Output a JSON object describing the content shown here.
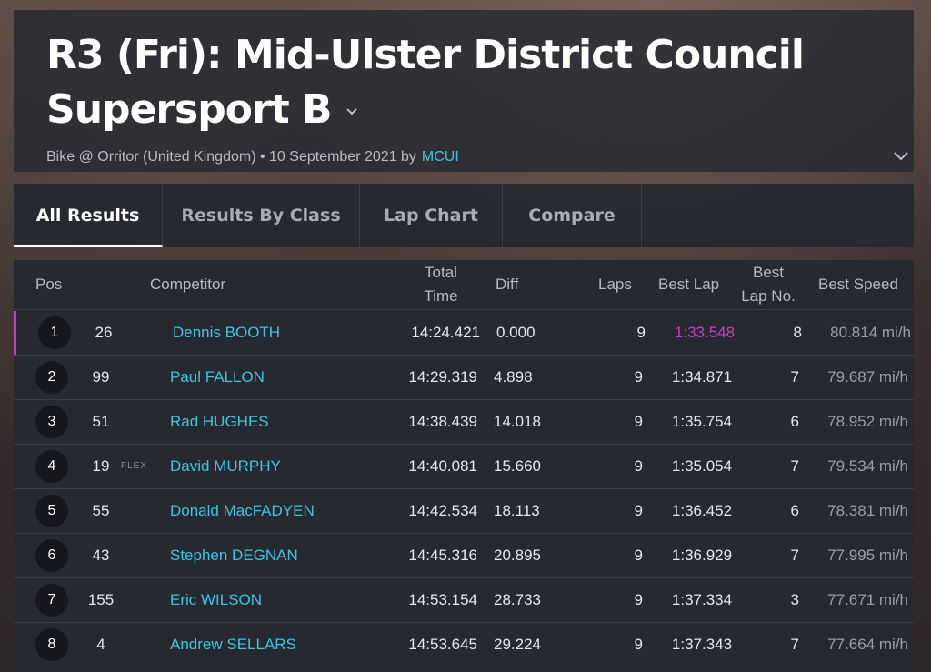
{
  "header": {
    "title": "R3 (Fri): Mid-Ulster District Council Supersport B",
    "subtitle": "Bike @ Orritor (United Kingdom) • 10 September 2021 by",
    "author": "MCUI"
  },
  "tabs": [
    {
      "label": "All Results",
      "active": true
    },
    {
      "label": "Results By Class",
      "active": false
    },
    {
      "label": "Lap Chart",
      "active": false
    },
    {
      "label": "Compare",
      "active": false
    }
  ],
  "table": {
    "columns": {
      "pos": "Pos",
      "competitor": "Competitor",
      "total_time_1": "Total",
      "total_time_2": "Time",
      "diff": "Diff",
      "laps": "Laps",
      "best_lap": "Best Lap",
      "best_lap_no_1": "Best",
      "best_lap_no_2": "Lap No.",
      "best_speed": "Best Speed"
    },
    "rows": [
      {
        "pos": "1",
        "num": "26",
        "tag": "",
        "name": "Dennis BOOTH",
        "total": "14:24.421",
        "diff": "0.000",
        "laps": "9",
        "best": "1:33.548",
        "bestno": "8",
        "speed": "80.814 mi/h"
      },
      {
        "pos": "2",
        "num": "99",
        "tag": "",
        "name": "Paul FALLON",
        "total": "14:29.319",
        "diff": "4.898",
        "laps": "9",
        "best": "1:34.871",
        "bestno": "7",
        "speed": "79.687 mi/h"
      },
      {
        "pos": "3",
        "num": "51",
        "tag": "",
        "name": "Rad HUGHES",
        "total": "14:38.439",
        "diff": "14.018",
        "laps": "9",
        "best": "1:35.754",
        "bestno": "6",
        "speed": "78.952 mi/h"
      },
      {
        "pos": "4",
        "num": "19",
        "tag": "FLEX",
        "name": "David MURPHY",
        "total": "14:40.081",
        "diff": "15.660",
        "laps": "9",
        "best": "1:35.054",
        "bestno": "7",
        "speed": "79.534 mi/h"
      },
      {
        "pos": "5",
        "num": "55",
        "tag": "",
        "name": "Donald MacFADYEN",
        "total": "14:42.534",
        "diff": "18.113",
        "laps": "9",
        "best": "1:36.452",
        "bestno": "6",
        "speed": "78.381 mi/h"
      },
      {
        "pos": "6",
        "num": "43",
        "tag": "",
        "name": "Stephen DEGNAN",
        "total": "14:45.316",
        "diff": "20.895",
        "laps": "9",
        "best": "1:36.929",
        "bestno": "7",
        "speed": "77.995 mi/h"
      },
      {
        "pos": "7",
        "num": "155",
        "tag": "",
        "name": "Eric WILSON",
        "total": "14:53.154",
        "diff": "28.733",
        "laps": "9",
        "best": "1:37.334",
        "bestno": "3",
        "speed": "77.671 mi/h"
      },
      {
        "pos": "8",
        "num": "4",
        "tag": "",
        "name": "Andrew SELLARS",
        "total": "14:53.645",
        "diff": "29.224",
        "laps": "9",
        "best": "1:37.343",
        "bestno": "7",
        "speed": "77.664 mi/h"
      }
    ]
  },
  "colors": {
    "accent": "#3fc3e0",
    "fastest_lap": "#c43fc4",
    "panel": "#262930"
  },
  "icons": {
    "title_dropdown": "chevron-down-icon",
    "expand": "chevron-down-icon"
  }
}
